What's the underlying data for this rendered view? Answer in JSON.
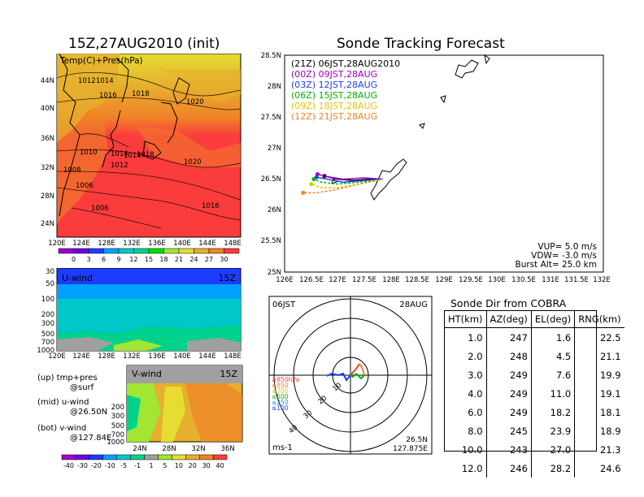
{
  "left_panel": {
    "title": "15Z,27AUG2010 (init)",
    "map_label": "Temp(C)+Pres(hPa)",
    "lat_ticks": [
      "44N",
      "40N",
      "36N",
      "32N",
      "28N",
      "24N"
    ],
    "lon_ticks": [
      "120E",
      "124E",
      "128E",
      "132E",
      "136E",
      "140E",
      "144E",
      "148E"
    ],
    "pressure_labels": [
      "1012",
      "1014",
      "1016",
      "1018",
      "1020",
      "1010",
      "1014",
      "1014",
      "1018",
      "1008",
      "1012",
      "1020",
      "1006",
      "1006",
      "1016"
    ],
    "colorbar_ticks": [
      "0",
      "3",
      "6",
      "9",
      "12",
      "15",
      "18",
      "21",
      "24",
      "27",
      "30"
    ],
    "colorbar_colors": [
      "#a000c8",
      "#6e00dc",
      "#1e3cff",
      "#00a0ff",
      "#00c8c8",
      "#00d28c",
      "#00dc00",
      "#a0e632",
      "#e6dc32",
      "#e6af2d",
      "#f08228",
      "#fa3c3c"
    ]
  },
  "uwind_panel": {
    "label": "U-wind",
    "time": "15Z",
    "y_ticks": [
      "30",
      "50",
      "100",
      "200",
      "300",
      "500",
      "700",
      "1000"
    ],
    "x_ticks": [
      "120E",
      "124E",
      "128E",
      "132E",
      "136E",
      "140E",
      "144E",
      "148E"
    ]
  },
  "vwind_panel": {
    "label": "V-wind",
    "time": "15Z",
    "y_ticks": [
      "200",
      "300",
      "500",
      "700",
      "1000"
    ],
    "x_ticks": [
      "24N",
      "28N",
      "32N",
      "36N"
    ]
  },
  "legend_notes": [
    {
      "line1": "(up) tmp+pres",
      "line2": "@surf"
    },
    {
      "line1": "(mid) u-wind",
      "line2": "@26.50N"
    },
    {
      "line1": "(bot) v-wind",
      "line2": "@127.84E"
    }
  ],
  "wind_colorbar_ticks": [
    "-40",
    "-30",
    "-20",
    "-10",
    "-5",
    "-1",
    "1",
    "5",
    "10",
    "20",
    "30",
    "40"
  ],
  "wind_colorbar_colors": [
    "#a000c8",
    "#6e00dc",
    "#1e3cff",
    "#00a0ff",
    "#00c8c8",
    "#00d28c",
    "#a0a0a0",
    "#a0e632",
    "#e6dc32",
    "#e6af2d",
    "#f08228",
    "#fa3c3c"
  ],
  "tracking": {
    "title": "Sonde Tracking Forecast",
    "lat_ticks": [
      "28.5N",
      "28N",
      "27.5N",
      "27N",
      "26.5N",
      "26N",
      "25.5N",
      "25N"
    ],
    "lon_ticks": [
      "126E",
      "126.5E",
      "127E",
      "127.5E",
      "128E",
      "128.5E",
      "129E",
      "129.5E",
      "130E",
      "130.5E",
      "131E",
      "131.5E",
      "132E"
    ],
    "legend": [
      {
        "text": "(21Z)  06JST,28AUG2010",
        "color": "#000000"
      },
      {
        "text": "(00Z)  09JST,28AUG",
        "color": "#a000c8"
      },
      {
        "text": "(03Z)  12JST,28AUG",
        "color": "#1e3cff"
      },
      {
        "text": "(06Z)  15JST,28AUG",
        "color": "#00b400"
      },
      {
        "text": "(09Z)  18JST,28AUG",
        "color": "#dcc800"
      },
      {
        "text": "(12Z)  21JST,28AUG",
        "color": "#f08228"
      }
    ],
    "vup": "VUP=  5.0  m/s",
    "vdw": "VDW=  -3.0  m/s",
    "burst": "Burst Alt=  25.0  km"
  },
  "chart_data": [
    {
      "type": "line",
      "title": "Sonde Tracking Forecast",
      "xlim": [
        126,
        132
      ],
      "ylim": [
        25,
        28.5
      ],
      "series": [
        {
          "name": "(21Z) 06JST,28AUG2010",
          "x": [
            127.85,
            127.6,
            127.3,
            127.0,
            126.75
          ],
          "y": [
            26.5,
            26.5,
            26.48,
            26.5,
            26.55
          ]
        },
        {
          "name": "(00Z) 09JST,28AUG",
          "x": [
            127.85,
            127.5,
            127.1,
            126.8,
            126.62
          ],
          "y": [
            26.5,
            26.52,
            26.5,
            26.54,
            26.58
          ]
        },
        {
          "name": "(03Z) 12JST,28AUG",
          "x": [
            127.85,
            127.5,
            127.1,
            126.8,
            126.6
          ],
          "y": [
            26.5,
            26.48,
            26.45,
            26.5,
            26.53
          ]
        },
        {
          "name": "(06Z) 15JST,28AUG",
          "x": [
            127.85,
            127.4,
            127.0,
            126.7,
            126.55
          ],
          "y": [
            26.5,
            26.45,
            26.42,
            26.45,
            26.5
          ]
        },
        {
          "name": "(09Z) 18JST,28AUG",
          "x": [
            127.85,
            127.4,
            127.0,
            126.7,
            126.5
          ],
          "y": [
            26.5,
            26.42,
            26.36,
            26.36,
            26.42
          ]
        },
        {
          "name": "(12Z) 21JST,28AUG",
          "x": [
            127.85,
            127.3,
            126.9,
            126.6,
            126.35
          ],
          "y": [
            26.5,
            26.4,
            26.32,
            26.28,
            26.28
          ]
        }
      ]
    },
    {
      "type": "table",
      "title": "Sonde Dir from COBRA",
      "columns": [
        "HT(km)",
        "AZ(deg)",
        "EL(deg)",
        "RNG(km)"
      ],
      "rows": [
        [
          "1.0",
          "247",
          "1.6",
          "22.5"
        ],
        [
          "2.0",
          "248",
          "4.5",
          "21.1"
        ],
        [
          "3.0",
          "249",
          "7.6",
          "19.9"
        ],
        [
          "4.0",
          "249",
          "11.0",
          "19.1"
        ],
        [
          "6.0",
          "249",
          "18.2",
          "18.1"
        ],
        [
          "8.0",
          "245",
          "23.9",
          "18.9"
        ],
        [
          "10.0",
          "243",
          "27.0",
          "21.3"
        ],
        [
          "12.0",
          "246",
          "28.2",
          "24.6"
        ]
      ]
    }
  ],
  "hodograph": {
    "time_label": "06JST",
    "date_label": "28AUG",
    "levels": [
      {
        "text": "≥850hPa",
        "color": "#fa3c3c"
      },
      {
        "text": "≤850",
        "color": "#f08228"
      },
      {
        "text": "≤700",
        "color": "#dcc800"
      },
      {
        "text": "≤500",
        "color": "#00b400"
      },
      {
        "text": "≤250",
        "color": "#00a0c8"
      },
      {
        "text": "≤100",
        "color": "#1e3cff"
      }
    ],
    "ring_labels": [
      "10",
      "20",
      "30",
      "40"
    ],
    "units": "ms-1",
    "pos_lat": "26.5N",
    "pos_lon": "127.875E"
  }
}
